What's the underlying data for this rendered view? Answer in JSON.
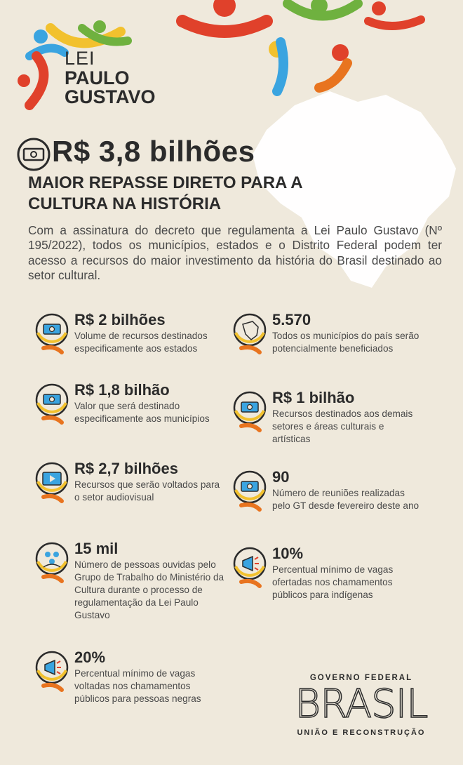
{
  "logo": {
    "line1": "LEI",
    "line2": "PAULO",
    "line3": "GUSTAVO"
  },
  "headline": {
    "amount": "R$ 3,8 bilhões",
    "subtitle": "MAIOR REPASSE DIRETO PARA A CULTURA NA HISTÓRIA"
  },
  "intro": "Com a assinatura do decreto que regulamenta a Lei Paulo Gustavo (Nº 195/2022), todos os municípios, estados e o Distrito Federal podem ter acesso a recursos do maior investimento da história do Brasil destinado ao setor cultural.",
  "stats": [
    {
      "value": "R$ 2 bilhões",
      "desc": "Volume de recursos destinados especificamente aos estados",
      "icon": "money-icon"
    },
    {
      "value": "5.570",
      "desc": "Todos os municípios do país serão potencialmente beneficiados",
      "icon": "brazil-map-icon"
    },
    {
      "value": "R$ 1,8 bilhão",
      "desc": "Valor que será destinado especificamente aos municípios",
      "icon": "money-icon"
    },
    {
      "value": "R$ 1 bilhão",
      "desc": "Recursos destinados aos demais setores e áreas culturais e artísticas",
      "icon": "money-icon"
    },
    {
      "value": "R$ 2,7 bilhões",
      "desc": "Recursos que serão voltados para o setor audiovisual",
      "icon": "video-icon"
    },
    {
      "value": "90",
      "desc": "Número de reuniões realizadas pelo GT desde fevereiro deste ano",
      "icon": "money-icon"
    },
    {
      "value": "15 mil",
      "desc": "Número de pessoas ouvidas pelo Grupo de Trabalho do Ministério da Cultura durante o processo de regulamentação da Lei Paulo Gustavo",
      "icon": "people-icon"
    },
    {
      "value": "10%",
      "desc": "Percentual mínimo de vagas ofertadas nos chamamentos públicos para indígenas",
      "icon": "megaphone-icon"
    },
    {
      "value": "20%",
      "desc": "Percentual mínimo de vagas voltadas nos chamamentos públicos para pessoas negras",
      "icon": "megaphone-icon"
    }
  ],
  "footer": {
    "top": "GOVERNO FEDERAL",
    "brand": "BRASIL",
    "bottom": "UNIÃO E RECONSTRUÇÃO"
  },
  "colors": {
    "background": "#efe9dc",
    "red": "#e0412b",
    "orange": "#e8741f",
    "yellow": "#f2c12e",
    "green": "#6fb13f",
    "blue": "#3aa4e0",
    "text": "#2b2b2b"
  }
}
